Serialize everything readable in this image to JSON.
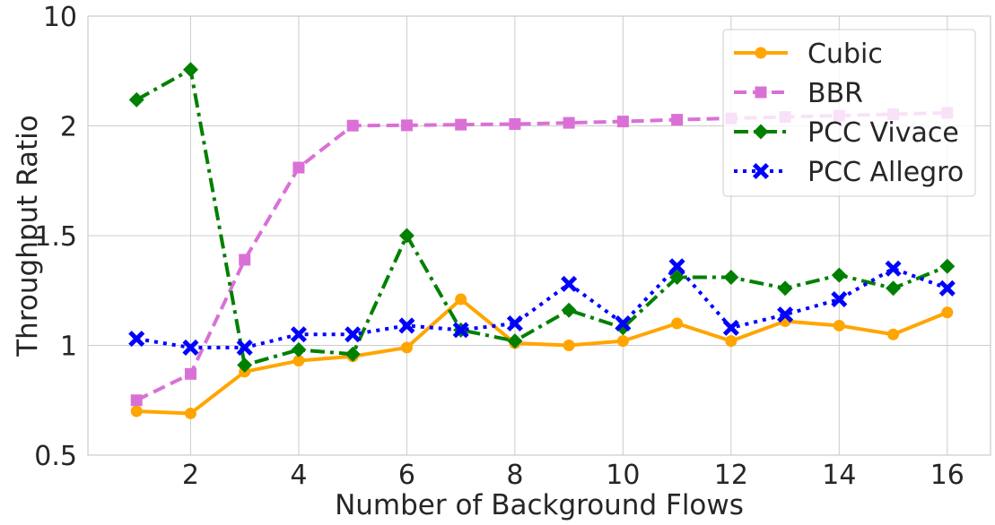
{
  "chart_data": {
    "type": "line",
    "title": "",
    "xlabel": "Number of Background Flows",
    "ylabel": "Throughput Ratio",
    "x": [
      1,
      2,
      3,
      4,
      5,
      6,
      7,
      8,
      9,
      10,
      11,
      12,
      13,
      14,
      15,
      16
    ],
    "xlim": [
      0.1,
      16.8
    ],
    "xticks": [
      "2",
      "4",
      "6",
      "8",
      "10",
      "12",
      "14",
      "16"
    ],
    "y_scale": "piecewise (ticks at 0.5, 1, 1.5, 2, 10)",
    "yticks": [
      "0.5",
      "1",
      "1.5",
      "2",
      "10"
    ],
    "grid": true,
    "legend_position": "top-right",
    "series": [
      {
        "name": "Cubic",
        "color": "#FFA500",
        "line_style": "solid",
        "marker": "circle",
        "values": [
          0.7,
          0.69,
          0.88,
          0.93,
          0.95,
          0.99,
          1.21,
          1.01,
          1.0,
          1.02,
          1.1,
          1.02,
          1.11,
          1.09,
          1.05,
          1.15
        ]
      },
      {
        "name": "BBR",
        "color": "#DA70D6",
        "line_style": "dashed",
        "marker": "square",
        "values": [
          0.75,
          0.87,
          1.39,
          1.81,
          2.02,
          2.04,
          2.09,
          2.13,
          2.22,
          2.32,
          2.45,
          2.55,
          2.65,
          2.75,
          2.85,
          2.95
        ]
      },
      {
        "name": "PCC Vivace",
        "color": "#008000",
        "line_style": "dashdot",
        "marker": "diamond",
        "values": [
          3.9,
          6.1,
          0.91,
          0.98,
          0.96,
          1.5,
          1.07,
          1.02,
          1.16,
          1.08,
          1.31,
          1.31,
          1.26,
          1.32,
          1.26,
          1.36
        ]
      },
      {
        "name": "PCC Allegro",
        "color": "#0000FF",
        "line_style": "dotted",
        "marker": "x",
        "values": [
          1.03,
          0.99,
          0.99,
          1.05,
          1.05,
          1.09,
          1.07,
          1.1,
          1.28,
          1.1,
          1.36,
          1.08,
          1.14,
          1.21,
          1.35,
          1.26
        ]
      }
    ]
  }
}
